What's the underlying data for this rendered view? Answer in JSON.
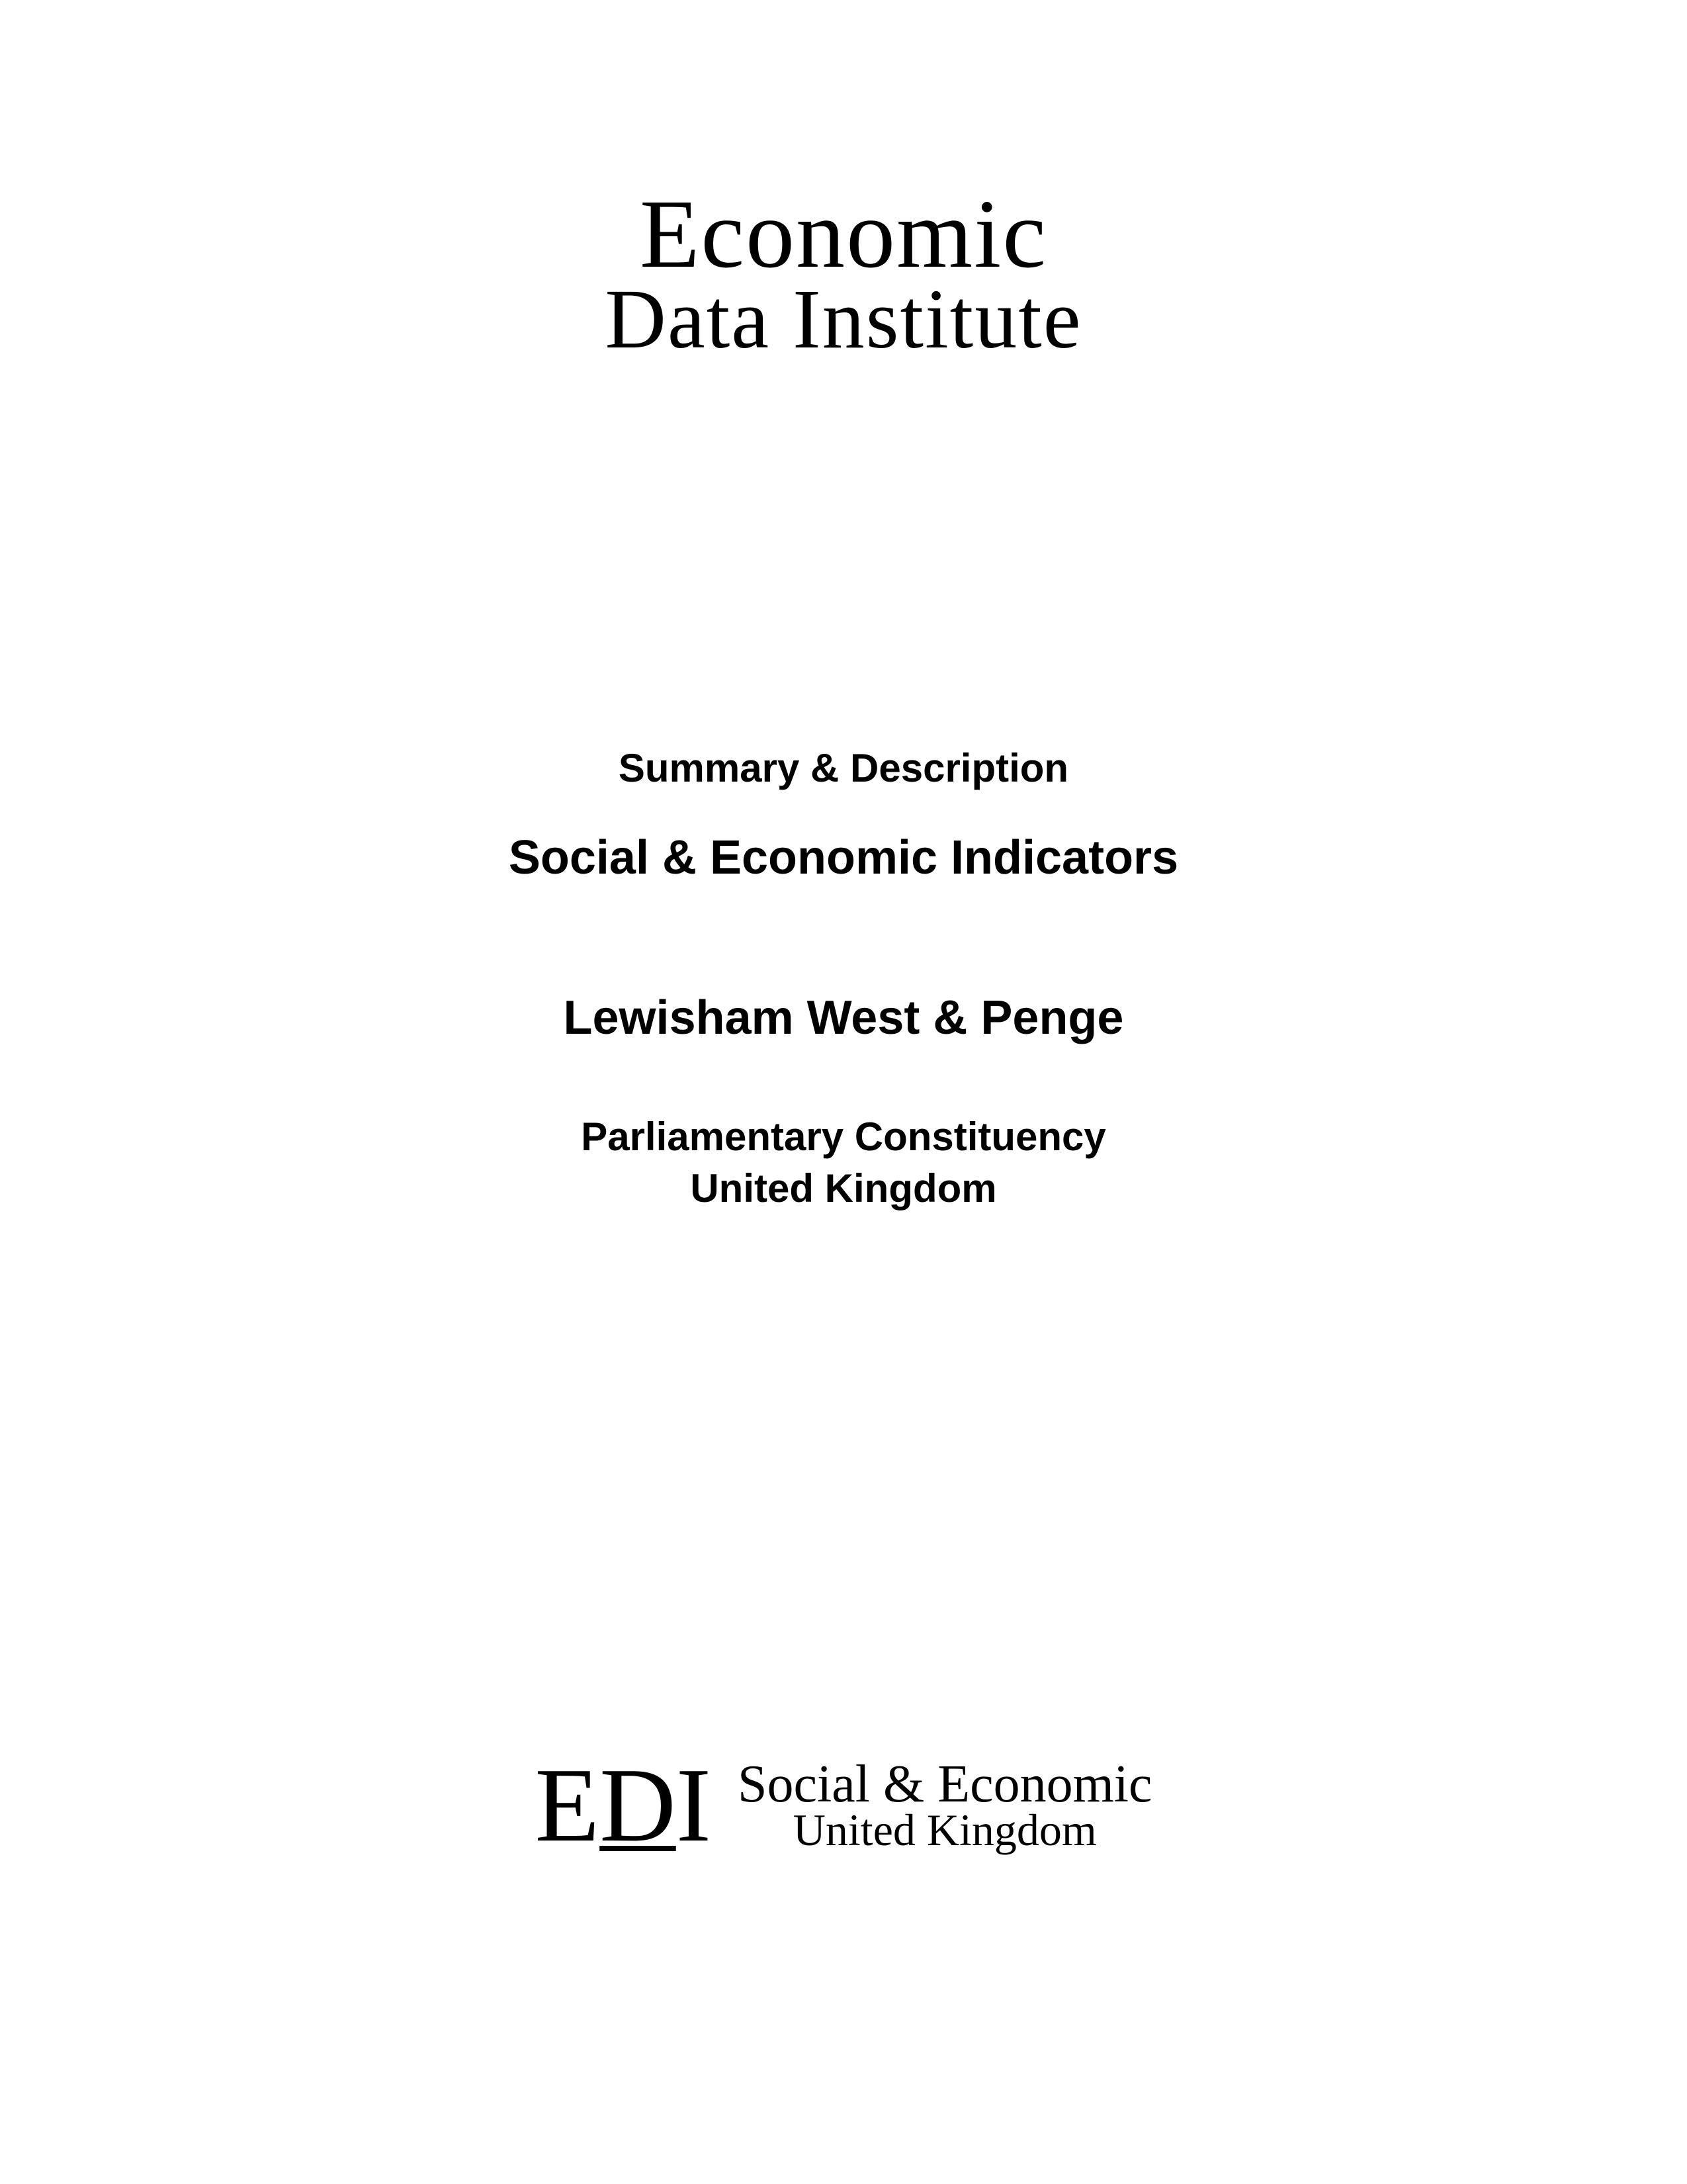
{
  "topLogo": {
    "line1": "Economic",
    "line2": "Data Institute"
  },
  "content": {
    "summary": "Summary & Description",
    "indicators": "Social & Economic Indicators",
    "location": "Lewisham West & Penge",
    "constituency": "Parliamentary Constituency",
    "country": "United Kingdom"
  },
  "bottomLogo": {
    "mark_e": "E",
    "mark_d": "D",
    "mark_i": "I",
    "line1": "Social & Economic",
    "line2": "United Kingdom"
  },
  "styling": {
    "background_color": "#ffffff",
    "text_color": "#000000",
    "top_logo_font": "Times New Roman",
    "body_font": "Arial",
    "top_logo_line1_fontsize": 148,
    "top_logo_line2_fontsize": 128,
    "summary_fontsize": 60,
    "indicators_fontsize": 72,
    "location_fontsize": 72,
    "constituency_fontsize": 60,
    "edi_mark_fontsize": 160,
    "bottom_logo_line1_fontsize": 80,
    "bottom_logo_line2_fontsize": 68
  }
}
